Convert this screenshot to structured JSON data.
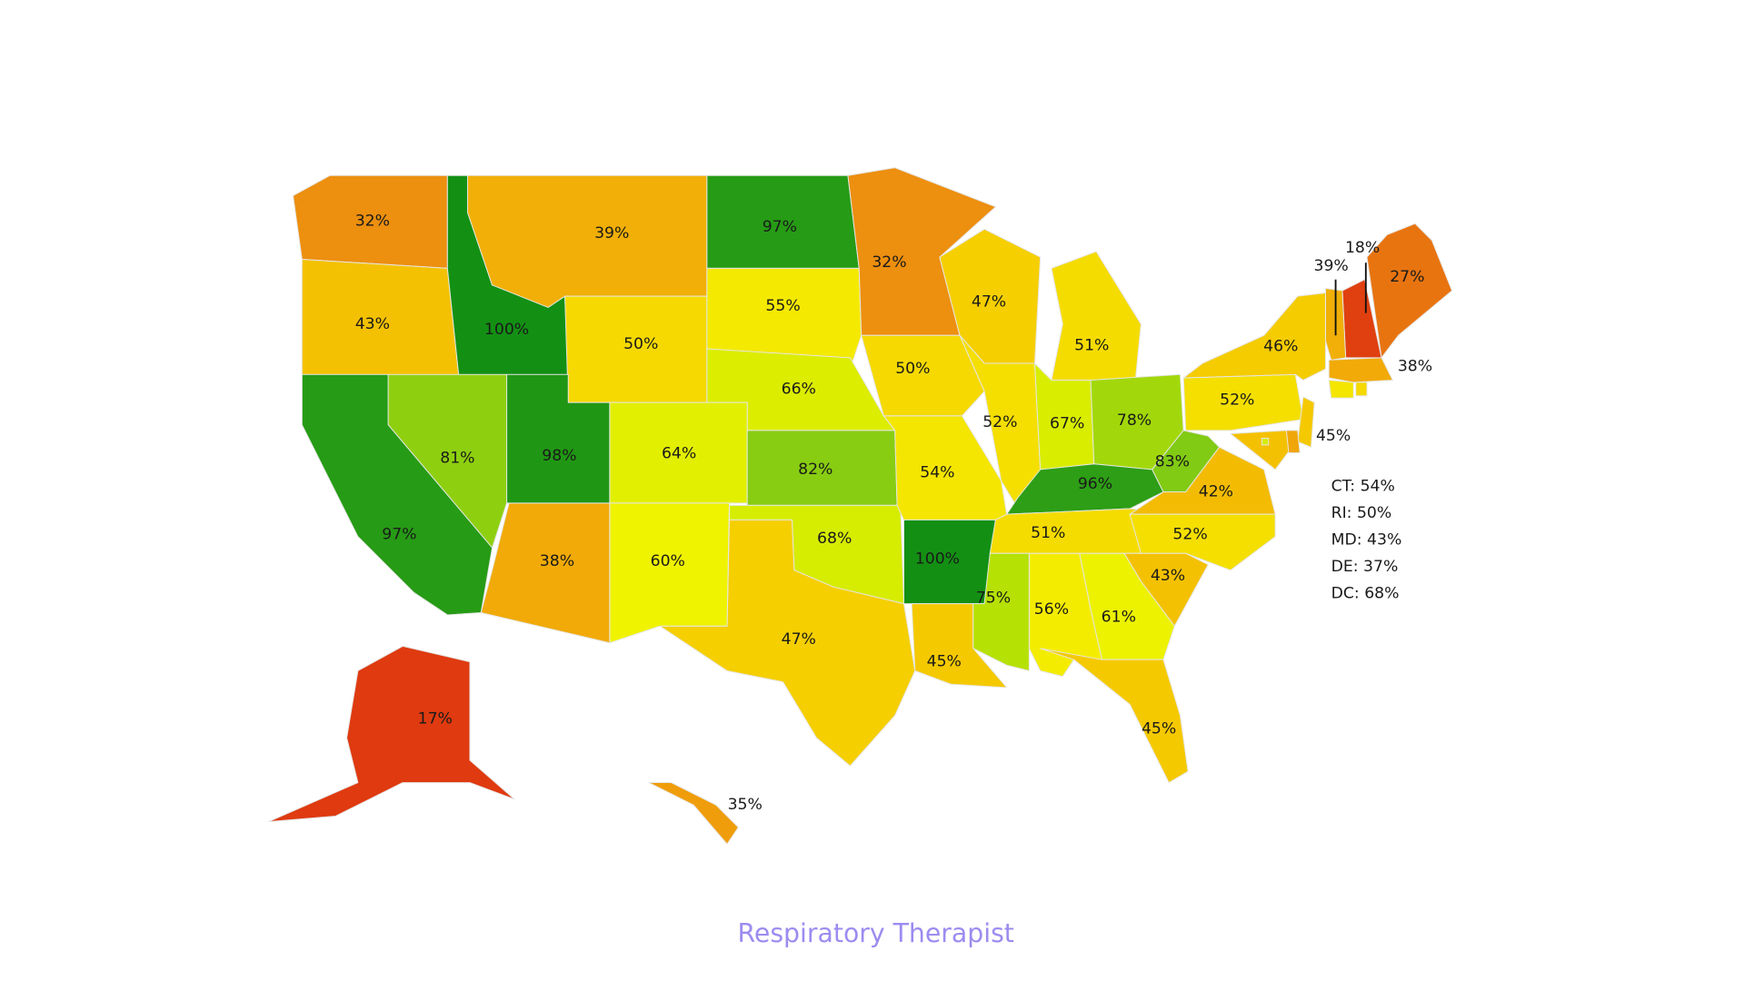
{
  "map": {
    "title": "Respiratory Therapist",
    "title_color": "#9b8cf0",
    "color_scale": [
      "#df3a10",
      "#ec8a10",
      "#f5c800",
      "#f4f400",
      "#c8e800",
      "#6cc21a",
      "#139013"
    ],
    "states": [
      {
        "label": "32%",
        "value": 32
      },
      {
        "label": "43%",
        "value": 43
      },
      {
        "label": "100%",
        "value": 100
      },
      {
        "label": "39%",
        "value": 39
      },
      {
        "label": "50%",
        "value": 50
      },
      {
        "label": "97%",
        "value": 97
      },
      {
        "label": "55%",
        "value": 55
      },
      {
        "label": "66%",
        "value": 66
      },
      {
        "label": "64%",
        "value": 64
      },
      {
        "label": "82%",
        "value": 82
      },
      {
        "label": "68%",
        "value": 68
      },
      {
        "label": "47%",
        "value": 47
      },
      {
        "label": "60%",
        "value": 60
      },
      {
        "label": "38%",
        "value": 38
      },
      {
        "label": "98%",
        "value": 98
      },
      {
        "label": "81%",
        "value": 81
      },
      {
        "label": "97%",
        "value": 97
      },
      {
        "label": "32%",
        "value": 32
      },
      {
        "label": "50%",
        "value": 50
      },
      {
        "label": "54%",
        "value": 54
      },
      {
        "label": "100%",
        "value": 100
      },
      {
        "label": "45%",
        "value": 45
      },
      {
        "label": "47%",
        "value": 47
      },
      {
        "label": "52%",
        "value": 52
      },
      {
        "label": "51%",
        "value": 51
      },
      {
        "label": "67%",
        "value": 67
      },
      {
        "label": "78%",
        "value": 78
      },
      {
        "label": "96%",
        "value": 96
      },
      {
        "label": "51%",
        "value": 51
      },
      {
        "label": "83%",
        "value": 83
      },
      {
        "label": "42%",
        "value": 42
      },
      {
        "label": "52%",
        "value": 52
      },
      {
        "label": "43%",
        "value": 43
      },
      {
        "label": "61%",
        "value": 61
      },
      {
        "label": "56%",
        "value": 56
      },
      {
        "label": "75%",
        "value": 75
      },
      {
        "label": "45%",
        "value": 45
      },
      {
        "label": "52%",
        "value": 52
      },
      {
        "label": "46%",
        "value": 46
      },
      {
        "label": "27%",
        "value": 27
      },
      {
        "label": "18%",
        "value": 18
      },
      {
        "label": "39%",
        "value": 39
      },
      {
        "label": "38%",
        "value": 38
      },
      {
        "label": "45%",
        "value": 45
      },
      {
        "label": "17%",
        "value": 17
      },
      {
        "label": "35%",
        "value": 35
      }
    ],
    "side_list": [
      {
        "label": "CT: 54%",
        "value": 54
      },
      {
        "label": "RI: 50%",
        "value": 50
      },
      {
        "label": "MD: 43%",
        "value": 43
      },
      {
        "label": "DE: 37%",
        "value": 37
      },
      {
        "label": "DC: 68%",
        "value": 68
      }
    ]
  }
}
